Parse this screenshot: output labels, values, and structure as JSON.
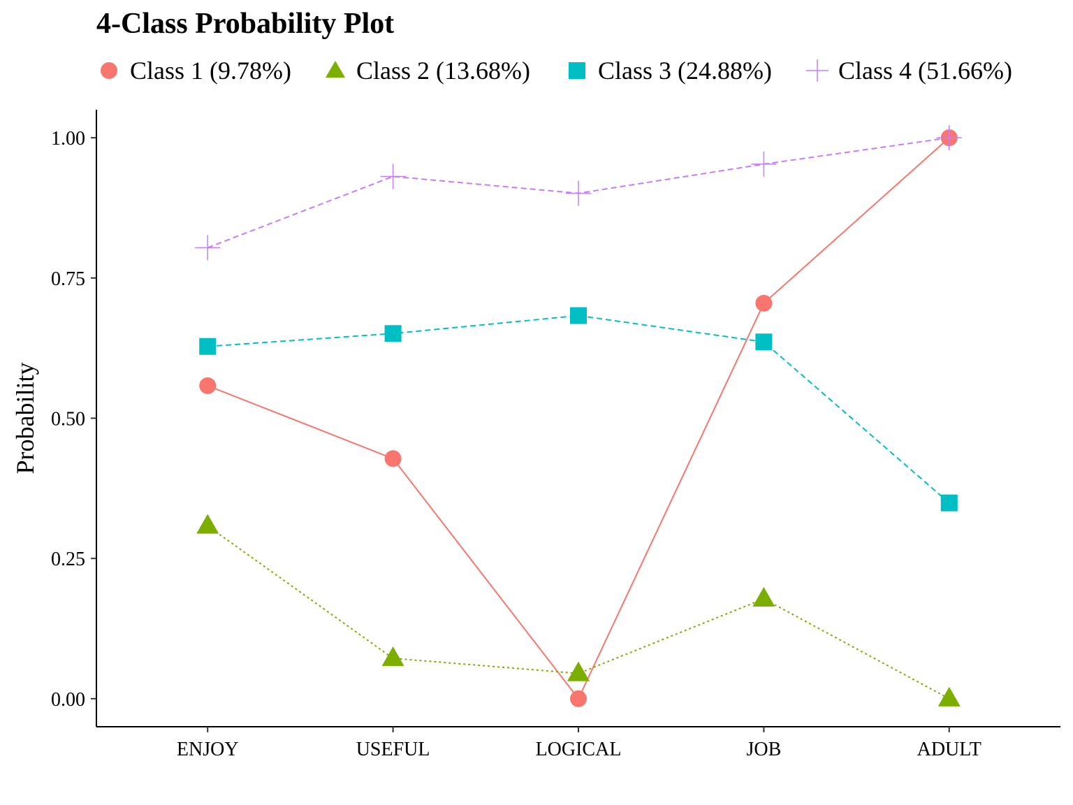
{
  "chart_data": {
    "type": "line",
    "title": "4-Class Probability Plot",
    "xlabel": "",
    "ylabel": "Probability",
    "categories": [
      "ENJOY",
      "USEFUL",
      "LOGICAL",
      "JOB",
      "ADULT"
    ],
    "ylim": [
      -0.05,
      1.05
    ],
    "yticks": [
      0.0,
      0.25,
      0.5,
      0.75,
      1.0
    ],
    "ytick_labels": [
      "0.00",
      "0.25",
      "0.50",
      "0.75",
      "1.00"
    ],
    "grid": false,
    "legend_position": "top",
    "series": [
      {
        "name": "Class 1 (9.78%)",
        "values": [
          0.558,
          0.428,
          0.0,
          0.705,
          1.0
        ],
        "color": "#F8766D",
        "marker": "circle",
        "line": "solid"
      },
      {
        "name": "Class 2 (13.68%)",
        "values": [
          0.308,
          0.072,
          0.045,
          0.178,
          0.0
        ],
        "color": "#7CAE00",
        "marker": "triangle",
        "line": "dotted"
      },
      {
        "name": "Class 3 (24.88%)",
        "values": [
          0.628,
          0.651,
          0.683,
          0.636,
          0.349
        ],
        "color": "#00BFC4",
        "marker": "square",
        "line": "dashed"
      },
      {
        "name": "Class 4 (51.66%)",
        "values": [
          0.804,
          0.931,
          0.901,
          0.953,
          1.0
        ],
        "color": "#C77CFF",
        "marker": "plus",
        "line": "dashed"
      }
    ]
  }
}
